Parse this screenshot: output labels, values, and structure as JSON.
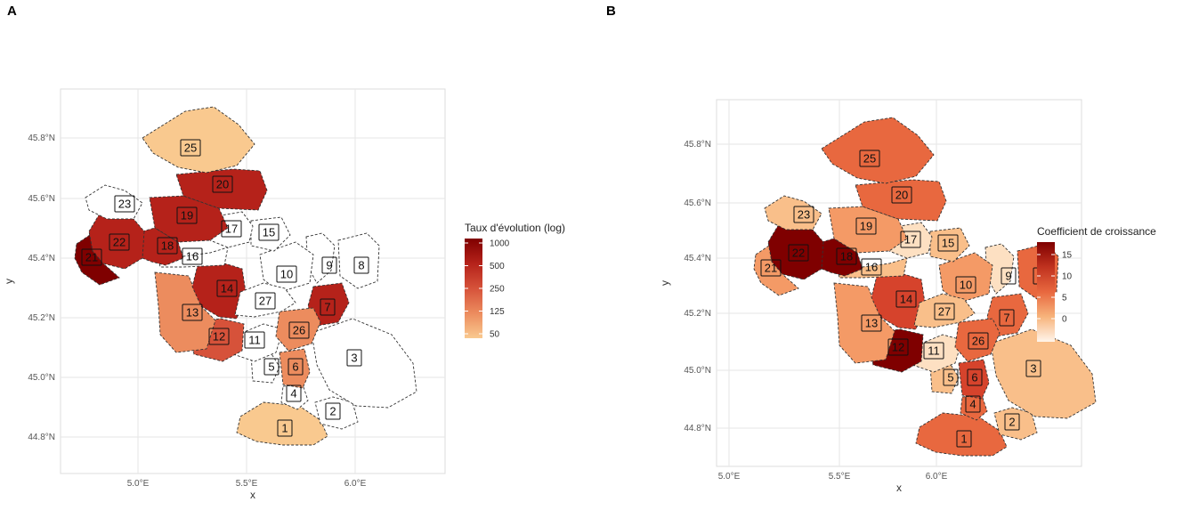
{
  "panels": [
    {
      "letter": "A",
      "legend": {
        "title": "Taux d'évolution (log)",
        "ticks": [
          "1000",
          "500",
          "250",
          "125",
          "50"
        ]
      },
      "x_axis": {
        "title": "x",
        "ticks": [
          "5.0°E",
          "5.5°E",
          "6.0°E"
        ]
      },
      "y_axis": {
        "title": "y",
        "ticks": [
          "45.8°N",
          "45.6°N",
          "45.4°N",
          "45.2°N",
          "45.0°N",
          "44.8°N"
        ]
      },
      "colors": {
        "1000": "#7f0000",
        "500": "#b5221a",
        "250": "#d6523a",
        "125": "#ec8c5e",
        "50": "#f9c98f",
        "none": "#ffffff"
      },
      "regions": {
        "1": "50",
        "2": "none",
        "3": "none",
        "4": "none",
        "5": "none",
        "6": "125",
        "7": "500",
        "8": "none",
        "9": "none",
        "10": "none",
        "11": "none",
        "12": "250",
        "13": "125",
        "14": "500",
        "15": "none",
        "16": "none",
        "17": "none",
        "18": "500",
        "19": "500",
        "20": "500",
        "21": "1000",
        "22": "500",
        "23": "none",
        "25": "50",
        "26": "125",
        "27": "none"
      }
    },
    {
      "letter": "B",
      "legend": {
        "title": "Coefficient de croissance",
        "ticks": [
          "15",
          "10",
          "5",
          "0"
        ]
      },
      "x_axis": {
        "title": "x",
        "ticks": [
          "5.0°E",
          "5.5°E",
          "6.0°E"
        ]
      },
      "y_axis": {
        "title": "y",
        "ticks": [
          "45.8°N",
          "45.6°N",
          "45.4°N",
          "45.2°N",
          "45.0°N",
          "44.8°N"
        ]
      },
      "colors": {
        "18": "#7f0000",
        "15": "#a3150f",
        "12": "#d6432c",
        "10": "#e8683f",
        "7": "#f49a66",
        "5": "#f9bf8a",
        "2": "#fde0c2",
        "0": "#fff5eb"
      },
      "regions": {
        "1": "10",
        "2": "5",
        "3": "5",
        "4": "10",
        "5": "5",
        "6": "12",
        "7": "10",
        "8": "10",
        "9": "2",
        "10": "7",
        "11": "2",
        "12": "18",
        "13": "7",
        "14": "12",
        "15": "5",
        "16": "5",
        "17": "2",
        "18": "18",
        "19": "7",
        "20": "10",
        "21": "7",
        "22": "18",
        "23": "5",
        "25": "10",
        "26": "10",
        "27": "5"
      }
    }
  ]
}
